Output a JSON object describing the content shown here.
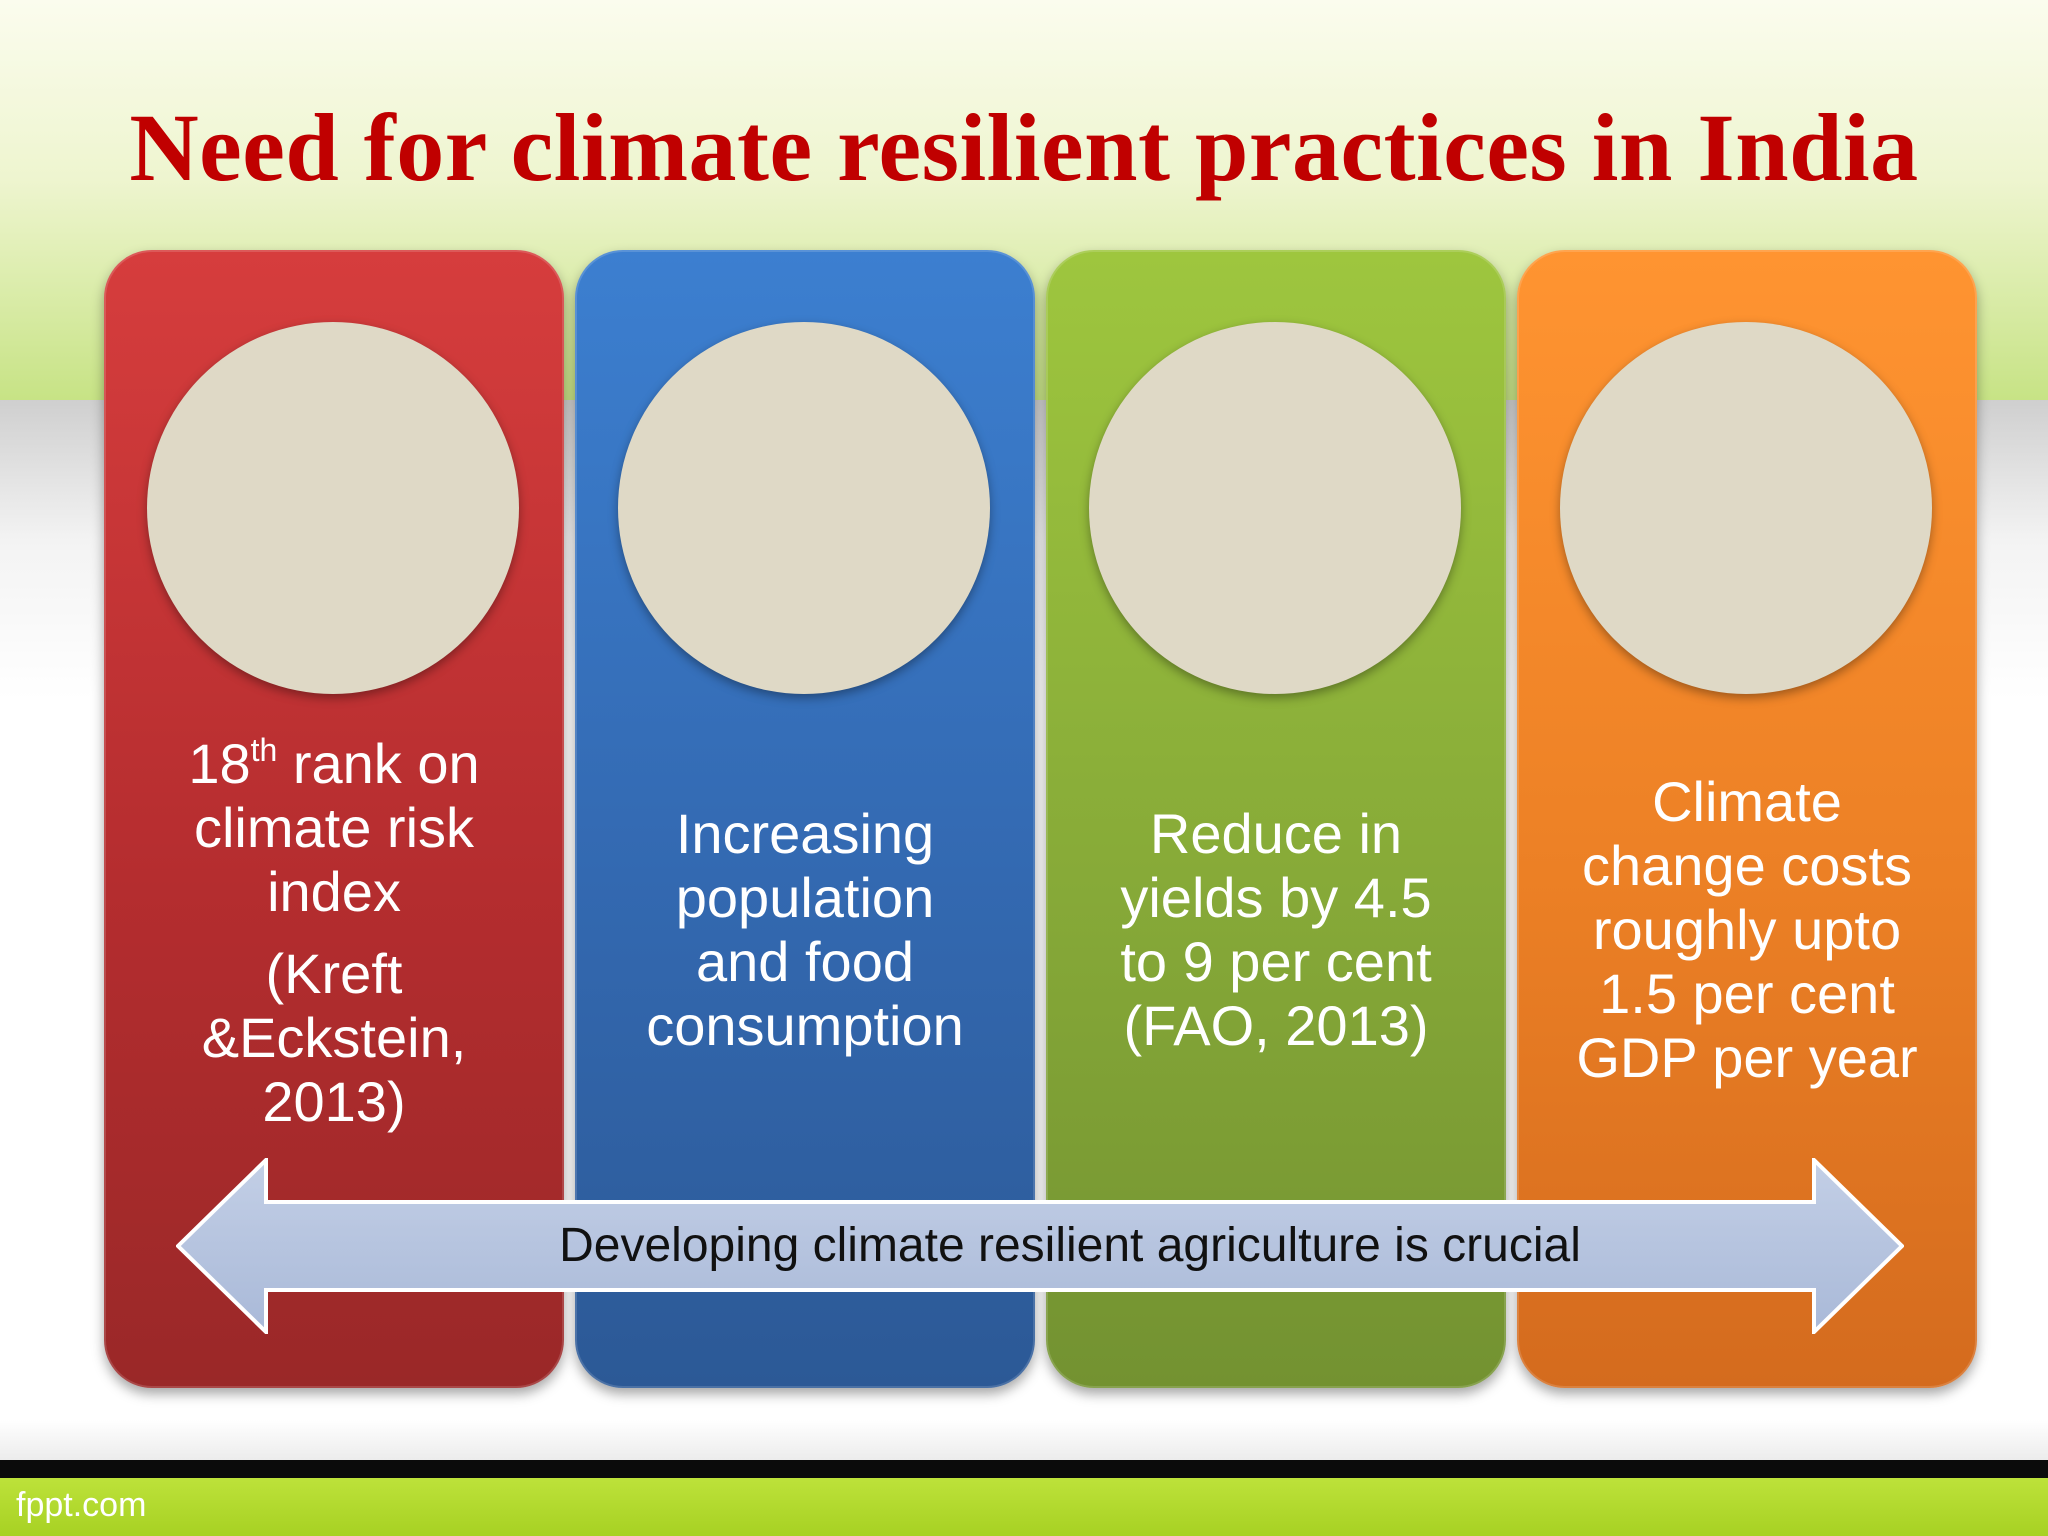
{
  "slide": {
    "title": "Need for climate resilient practices in India",
    "footer": "fppt.com",
    "colors": {
      "title": "#c00000",
      "panel_red": "#c63434",
      "panel_blue": "#3672c2",
      "panel_green": "#8fb43a",
      "panel_orange": "#f5892a",
      "circle": "#dfd9c6",
      "arrow_fill": "#b0bfdc",
      "footer_band": "#b0d92c"
    },
    "panels": [
      {
        "line1_number": "18",
        "line1_sup": "th",
        "line1_rest": " rank on",
        "line2": "climate risk",
        "line3": "index",
        "cite_line1": "(Kreft",
        "cite_line2": "&Eckstein,",
        "cite_line3": "2013)"
      },
      {
        "line1": "Increasing",
        "line2": "population",
        "line3": "and food",
        "line4": "consumption"
      },
      {
        "line1": "Reduce in",
        "line2": "yields by 4.5",
        "line3": "to 9 per cent",
        "line4": "(FAO, 2013)"
      },
      {
        "line1": "Climate",
        "line2": "change costs",
        "line3": "roughly upto",
        "line4": "1.5 per cent",
        "line5": "GDP per year"
      }
    ],
    "arrow": {
      "label": "Developing climate resilient agriculture is crucial"
    }
  }
}
